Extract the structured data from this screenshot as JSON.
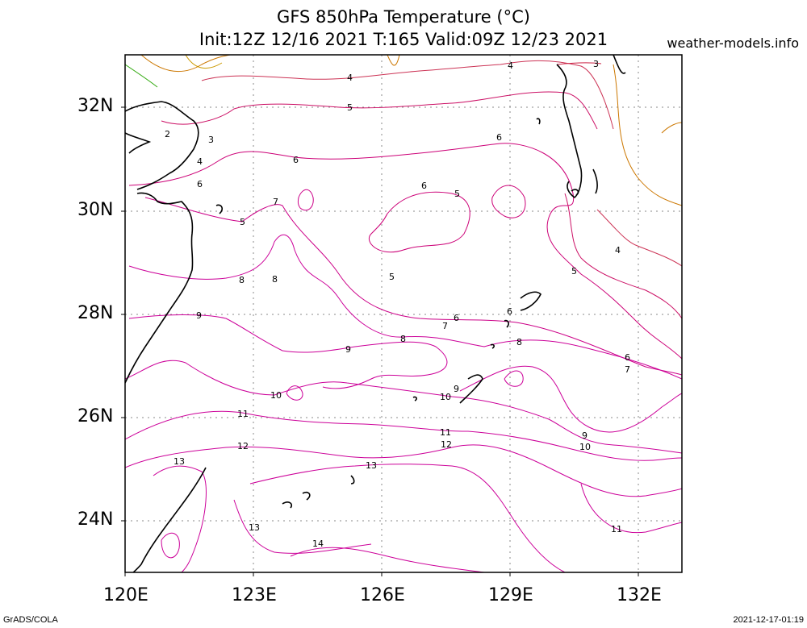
{
  "title": {
    "line1": "GFS 850hPa Temperature (°C)",
    "line2": "Init:12Z 12/16 2021 T:165 Valid:09Z 12/23 2021"
  },
  "site": "weather-models.info",
  "footer": {
    "left": "GrADS/COLA",
    "right": "2021-12-17-01:19"
  },
  "map": {
    "lat_range": [
      23,
      33
    ],
    "lon_range": [
      120,
      133
    ],
    "lat_labels": [
      "32N",
      "30N",
      "28N",
      "26N",
      "24N"
    ],
    "lon_labels": [
      "120E",
      "123E",
      "126E",
      "129E",
      "132E"
    ],
    "grid": true,
    "contour_labels": [
      "2",
      "3",
      "4",
      "5",
      "6",
      "7",
      "8",
      "9",
      "10",
      "11",
      "12",
      "13",
      "14"
    ],
    "colors": {
      "warm": "#cc0088",
      "mid": "#cc2244",
      "cool": "#cc7700",
      "cold": "#33aa11",
      "coast": "#000000"
    }
  }
}
